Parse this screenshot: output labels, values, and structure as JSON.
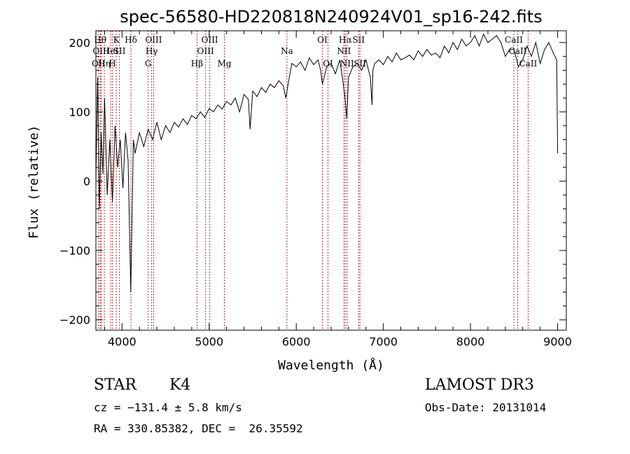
{
  "chart_data": {
    "type": "line",
    "title": "spec-56580-HD220818N240924V01_sp16-242.fits",
    "xlabel": "Wavelength (Å)",
    "ylabel": "Flux (relative)",
    "xlim": [
      3700,
      9100
    ],
    "ylim": [
      -215,
      217
    ],
    "x_ticks": [
      4000,
      5000,
      6000,
      7000,
      8000,
      9000
    ],
    "y_ticks": [
      -200,
      -100,
      0,
      100,
      200
    ],
    "grid": false,
    "series": [
      {
        "color": "#000000",
        "x": [
          3700,
          3720,
          3740,
          3760,
          3780,
          3800,
          3830,
          3860,
          3890,
          3920,
          3950,
          3980,
          4010,
          4040,
          4070,
          4100,
          4130,
          4150,
          4200,
          4250,
          4300,
          4350,
          4400,
          4450,
          4500,
          4550,
          4600,
          4650,
          4700,
          4750,
          4800,
          4850,
          4900,
          4950,
          5000,
          5050,
          5100,
          5150,
          5200,
          5250,
          5300,
          5350,
          5400,
          5450,
          5470,
          5500,
          5550,
          5600,
          5650,
          5700,
          5750,
          5800,
          5850,
          5880,
          5920,
          5950,
          6000,
          6050,
          6100,
          6150,
          6200,
          6250,
          6280,
          6300,
          6350,
          6400,
          6450,
          6500,
          6540,
          6560,
          6580,
          6600,
          6650,
          6700,
          6750,
          6800,
          6850,
          6870,
          6880,
          6900,
          6950,
          7000,
          7050,
          7100,
          7150,
          7200,
          7250,
          7300,
          7350,
          7400,
          7450,
          7500,
          7550,
          7600,
          7650,
          7700,
          7750,
          7800,
          7850,
          7900,
          7950,
          8000,
          8050,
          8100,
          8150,
          8200,
          8250,
          8300,
          8350,
          8400,
          8450,
          8500,
          8550,
          8600,
          8650,
          8700,
          8750,
          8800,
          8850,
          8900,
          8950,
          8990,
          9000
        ],
        "y": [
          0,
          150,
          -40,
          70,
          10,
          120,
          -20,
          60,
          -30,
          80,
          20,
          60,
          -10,
          70,
          30,
          -160,
          60,
          40,
          70,
          50,
          75,
          60,
          85,
          60,
          80,
          70,
          85,
          78,
          90,
          82,
          95,
          90,
          100,
          92,
          105,
          100,
          110,
          104,
          115,
          110,
          120,
          100,
          125,
          118,
          75,
          130,
          122,
          135,
          128,
          140,
          135,
          145,
          138,
          120,
          150,
          170,
          165,
          172,
          160,
          178,
          168,
          175,
          160,
          140,
          165,
          170,
          155,
          175,
          140,
          120,
          90,
          150,
          165,
          170,
          160,
          175,
          150,
          110,
          160,
          170,
          175,
          168,
          180,
          172,
          185,
          175,
          178,
          182,
          175,
          188,
          180,
          190,
          182,
          185,
          178,
          195,
          185,
          200,
          190,
          205,
          195,
          200,
          210,
          195,
          212,
          200,
          205,
          210,
          200,
          180,
          190,
          190,
          165,
          175,
          195,
          180,
          200,
          170,
          190,
          200,
          185,
          175,
          40
        ]
      }
    ],
    "lines": [
      {
        "x": 3730,
        "label": "OII",
        "row": 3
      },
      {
        "x": 3750,
        "label": "Hθ",
        "row": 1
      },
      {
        "x": 3760,
        "label": "OIII",
        "row": 2
      },
      {
        "x": 3797,
        "label": "Hη",
        "row": 3
      },
      {
        "x": 3869,
        "label": "HeI",
        "row": 2
      },
      {
        "x": 3889,
        "label": "H",
        "row": 3
      },
      {
        "x": 3934,
        "label": "K",
        "row": 1
      },
      {
        "x": 3970,
        "label": "SII",
        "row": 2
      },
      {
        "x": 4102,
        "label": "Hδ",
        "row": 1
      },
      {
        "x": 4300,
        "label": "G",
        "row": 3
      },
      {
        "x": 4340,
        "label": "Hγ",
        "row": 2
      },
      {
        "x": 4363,
        "label": "OIII",
        "row": 1
      },
      {
        "x": 4861,
        "label": "Hβ",
        "row": 3
      },
      {
        "x": 4959,
        "label": "OIII",
        "row": 2
      },
      {
        "x": 5007,
        "label": "OIII",
        "row": 1
      },
      {
        "x": 5175,
        "label": "Mg",
        "row": 3
      },
      {
        "x": 5893,
        "label": "Na",
        "row": 2
      },
      {
        "x": 6300,
        "label": "OI",
        "row": 1
      },
      {
        "x": 6364,
        "label": "OI",
        "row": 3
      },
      {
        "x": 6548,
        "label": "NII",
        "row": 2
      },
      {
        "x": 6563,
        "label": "Hα",
        "row": 1
      },
      {
        "x": 6583,
        "label": "NII",
        "row": 3
      },
      {
        "x": 6716,
        "label": "SII",
        "row": 1
      },
      {
        "x": 6731,
        "label": "SII",
        "row": 3
      },
      {
        "x": 8498,
        "label": "CaII",
        "row": 1
      },
      {
        "x": 8542,
        "label": "CaII",
        "row": 2
      },
      {
        "x": 8662,
        "label": "CaII",
        "row": 3
      }
    ],
    "line_color": "#b03030"
  },
  "info": {
    "class": "STAR",
    "subclass": "K4",
    "survey": "LAMOST DR3",
    "cz": "cz = −131.4 ± 5.8 km/s",
    "obs_date": "Obs-Date: 20131014",
    "coords": "RA = 330.85382, DEC =  26.35592"
  }
}
